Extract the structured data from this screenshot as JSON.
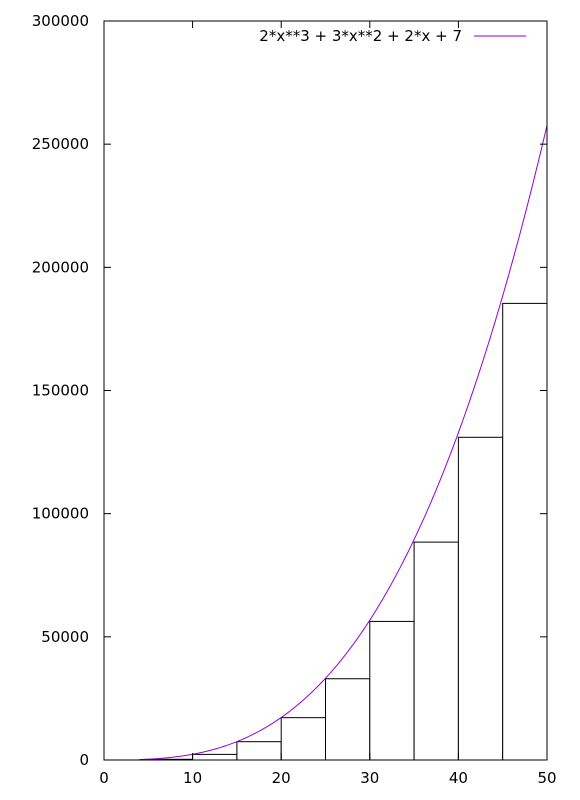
{
  "chart_data": {
    "type": "bar",
    "xlim": [
      0,
      50
    ],
    "ylim": [
      0,
      300000
    ],
    "x_ticks": [
      0,
      10,
      20,
      30,
      40,
      50
    ],
    "y_ticks": [
      0,
      50000,
      100000,
      150000,
      200000,
      250000,
      300000
    ],
    "x_tick_labels": [
      "0",
      "10",
      "20",
      "30",
      "40",
      "50"
    ],
    "y_tick_labels": [
      "0",
      "50000",
      "100000",
      "150000",
      "200000",
      "250000",
      "300000"
    ],
    "grid": false,
    "bars": {
      "bin_width": 5,
      "x_start": [
        0,
        5,
        10,
        15,
        20,
        25,
        30,
        35,
        40,
        45
      ],
      "values": [
        7,
        282,
        2277,
        7432,
        17187,
        32982,
        56257,
        88452,
        131007,
        185362
      ]
    },
    "series": [
      {
        "name": "2*x**3 + 3*x**2 + 2*x + 7",
        "type": "line",
        "function": "2*x**3 + 3*x**2 + 2*x + 7",
        "x_range": [
          4,
          50
        ],
        "color": "#9400d3"
      }
    ],
    "legend_position": "top-right",
    "bar_edge_color": "#000000",
    "bar_fill_color": "#ffffff"
  }
}
